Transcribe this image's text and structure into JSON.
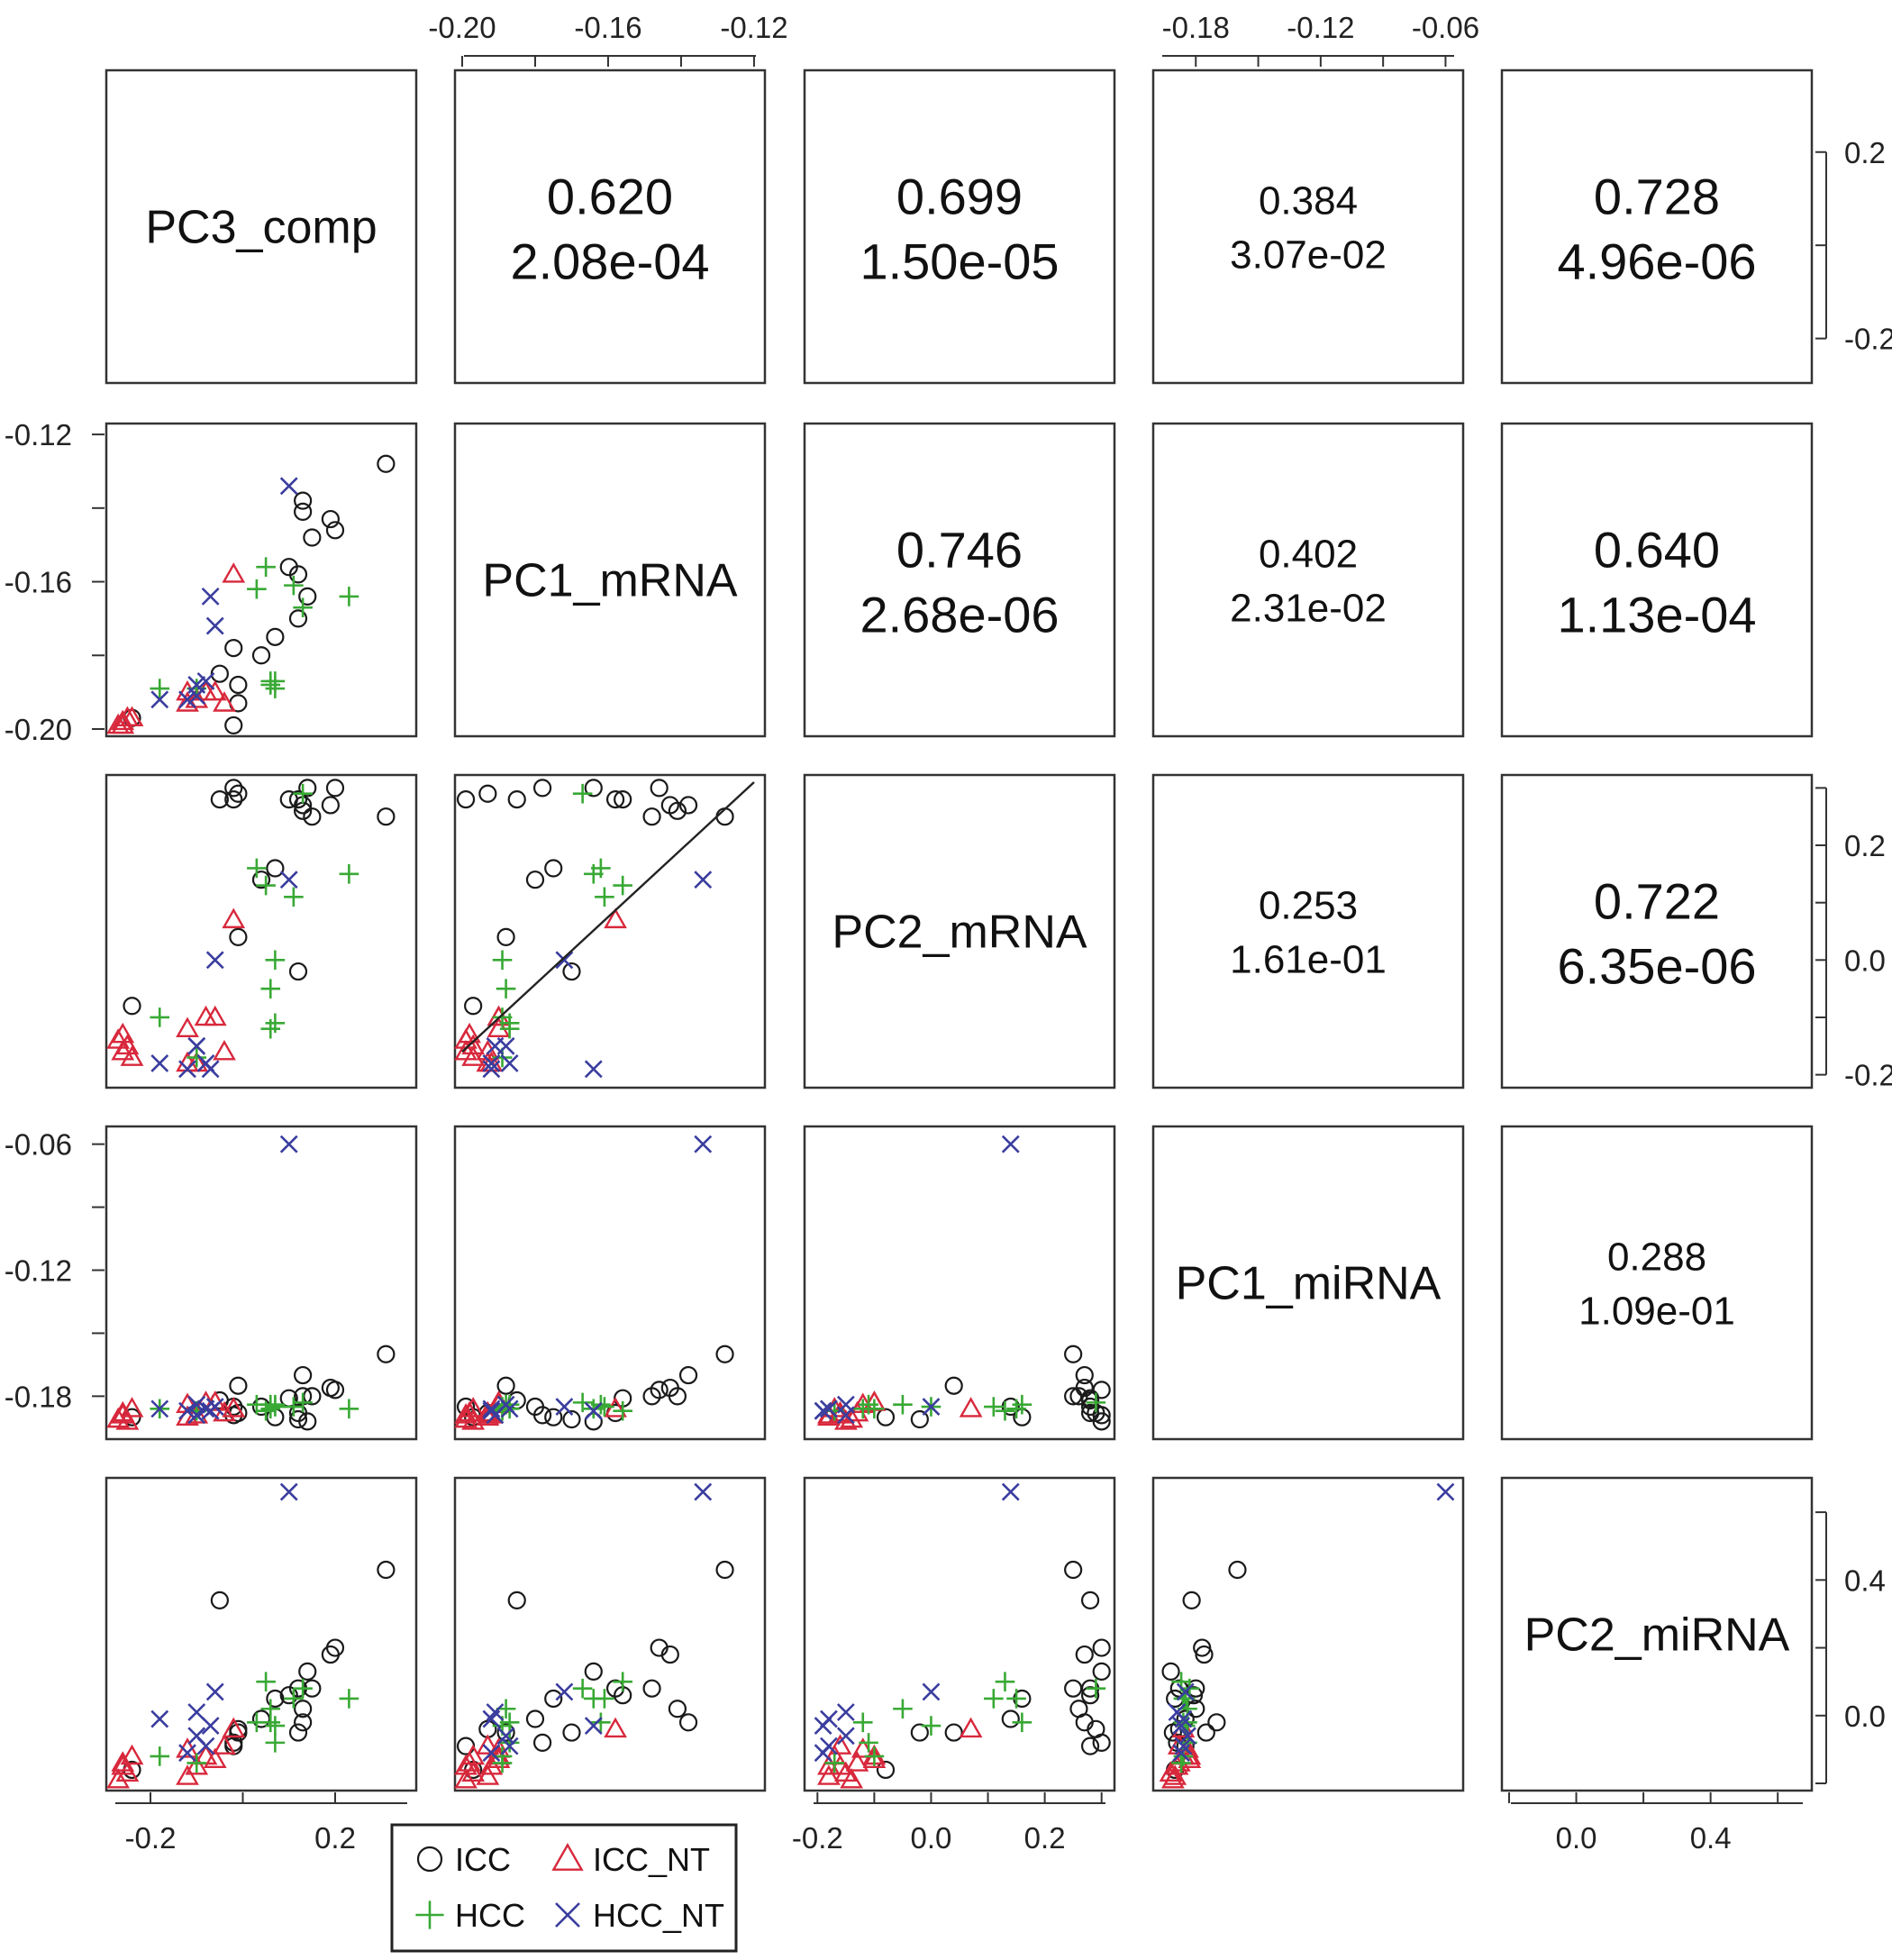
{
  "chart_data": {
    "type": "scatter-matrix",
    "variables": [
      "PC3_comp",
      "PC1_mRNA",
      "PC2_mRNA",
      "PC1_miRNA",
      "PC2_miRNA"
    ],
    "correlations": [
      {
        "row": 0,
        "col": 1,
        "r": "0.620",
        "p": "2.08e-04"
      },
      {
        "row": 0,
        "col": 2,
        "r": "0.699",
        "p": "1.50e-05"
      },
      {
        "row": 0,
        "col": 3,
        "r": "0.384",
        "p": "3.07e-02"
      },
      {
        "row": 0,
        "col": 4,
        "r": "0.728",
        "p": "4.96e-06"
      },
      {
        "row": 1,
        "col": 2,
        "r": "0.746",
        "p": "2.68e-06"
      },
      {
        "row": 1,
        "col": 3,
        "r": "0.402",
        "p": "2.31e-02"
      },
      {
        "row": 1,
        "col": 4,
        "r": "0.640",
        "p": "1.13e-04"
      },
      {
        "row": 2,
        "col": 3,
        "r": "0.253",
        "p": "1.61e-01"
      },
      {
        "row": 2,
        "col": 4,
        "r": "0.722",
        "p": "6.35e-06"
      },
      {
        "row": 3,
        "col": 4,
        "r": "0.288",
        "p": "1.09e-01"
      }
    ],
    "axes": {
      "top": [
        {
          "col": 1,
          "ticks": [
            "-0.20",
            "-0.16",
            "-0.12"
          ]
        },
        {
          "col": 3,
          "ticks": [
            "-0.18",
            "-0.12",
            "-0.06"
          ]
        }
      ],
      "bottom": [
        {
          "col": 0,
          "ticks": [
            "-0.2",
            "0.2"
          ]
        },
        {
          "col": 2,
          "ticks": [
            "-0.2",
            "0.0",
            "0.2"
          ]
        },
        {
          "col": 4,
          "ticks": [
            "0.0",
            "0.4"
          ]
        }
      ],
      "left": [
        {
          "row": 1,
          "ticks": [
            "-0.12",
            "-0.16",
            "-0.20"
          ]
        },
        {
          "row": 3,
          "ticks": [
            "-0.06",
            "-0.12",
            "-0.18"
          ]
        }
      ],
      "right": [
        {
          "row": 0,
          "ticks": [
            "0.2",
            "-0.2"
          ]
        },
        {
          "row": 2,
          "ticks": [
            "0.2",
            "0.0",
            "-0.2"
          ]
        },
        {
          "row": 4,
          "ticks": [
            "0.4",
            "0.0"
          ]
        }
      ]
    },
    "ranges": {
      "PC3_comp": [
        -0.28,
        0.36
      ],
      "PC1_mRNA": [
        -0.2,
        -0.119
      ],
      "PC2_mRNA": [
        -0.21,
        0.31
      ],
      "PC1_miRNA": [
        -0.197,
        -0.055
      ],
      "PC2_miRNA": [
        -0.2,
        0.68
      ]
    },
    "regression_line": {
      "row": 2,
      "col": 1,
      "x": [
        -0.2,
        -0.12
      ],
      "y": [
        -0.16,
        0.31
      ]
    },
    "legend": [
      {
        "label": "ICC",
        "marker": "circle",
        "color": "#1a1a1a"
      },
      {
        "label": "ICC_NT",
        "marker": "triangle",
        "color": "#d8283c"
      },
      {
        "label": "HCC",
        "marker": "plus",
        "color": "#39a935"
      },
      {
        "label": "HCC_NT",
        "marker": "x",
        "color": "#3a3d9e"
      }
    ],
    "samples": [
      {
        "group": "ICC",
        "values": [
          -0.24,
          -0.197,
          -0.08,
          -0.19,
          -0.16
        ]
      },
      {
        "group": "ICC",
        "values": [
          -0.02,
          -0.199,
          0.28,
          -0.185,
          -0.09
        ]
      },
      {
        "group": "ICC",
        "values": [
          -0.01,
          -0.193,
          0.29,
          -0.188,
          -0.04
        ]
      },
      {
        "group": "ICC",
        "values": [
          -0.01,
          -0.188,
          0.04,
          -0.175,
          -0.05
        ]
      },
      {
        "group": "ICC",
        "values": [
          0.04,
          -0.18,
          0.14,
          -0.185,
          -0.01
        ]
      },
      {
        "group": "ICC",
        "values": [
          0.07,
          -0.175,
          0.16,
          -0.19,
          0.05
        ]
      },
      {
        "group": "ICC",
        "values": [
          0.12,
          -0.17,
          -0.02,
          -0.191,
          -0.05
        ]
      },
      {
        "group": "ICC",
        "values": [
          0.14,
          -0.164,
          0.3,
          -0.192,
          0.13
        ]
      },
      {
        "group": "ICC",
        "values": [
          0.12,
          -0.158,
          0.28,
          -0.188,
          0.08
        ]
      },
      {
        "group": "ICC",
        "values": [
          0.1,
          -0.156,
          0.28,
          -0.181,
          0.06
        ]
      },
      {
        "group": "ICC",
        "values": [
          0.15,
          -0.148,
          0.25,
          -0.18,
          0.08
        ]
      },
      {
        "group": "ICC",
        "values": [
          0.2,
          -0.146,
          0.3,
          -0.177,
          0.2
        ]
      },
      {
        "group": "ICC",
        "values": [
          0.19,
          -0.143,
          0.27,
          -0.176,
          0.18
        ]
      },
      {
        "group": "ICC",
        "values": [
          -0.05,
          -0.185,
          0.28,
          -0.182,
          0.34
        ]
      },
      {
        "group": "ICC",
        "values": [
          0.31,
          -0.128,
          0.25,
          -0.16,
          0.43
        ]
      },
      {
        "group": "ICC",
        "values": [
          0.13,
          -0.138,
          0.27,
          -0.17,
          -0.02
        ]
      },
      {
        "group": "ICC",
        "values": [
          -0.02,
          -0.178,
          0.3,
          -0.189,
          -0.08
        ]
      },
      {
        "group": "ICC",
        "values": [
          0.13,
          -0.141,
          0.26,
          -0.18,
          0.02
        ]
      },
      {
        "group": "ICC_NT",
        "values": [
          -0.26,
          -0.198,
          -0.13,
          -0.188,
          -0.14
        ]
      },
      {
        "group": "ICC_NT",
        "values": [
          -0.25,
          -0.197,
          -0.15,
          -0.192,
          -0.17
        ]
      },
      {
        "group": "ICC_NT",
        "values": [
          -0.27,
          -0.199,
          -0.14,
          -0.191,
          -0.19
        ]
      },
      {
        "group": "ICC_NT",
        "values": [
          -0.24,
          -0.197,
          -0.17,
          -0.186,
          -0.12
        ]
      },
      {
        "group": "ICC_NT",
        "values": [
          -0.26,
          -0.199,
          -0.16,
          -0.189,
          -0.15
        ]
      },
      {
        "group": "ICC_NT",
        "values": [
          -0.06,
          -0.19,
          -0.1,
          -0.183,
          -0.13
        ]
      },
      {
        "group": "ICC_NT",
        "values": [
          -0.02,
          -0.158,
          0.07,
          -0.186,
          -0.04
        ]
      },
      {
        "group": "ICC_NT",
        "values": [
          -0.12,
          -0.19,
          -0.12,
          -0.184,
          -0.1
        ]
      },
      {
        "group": "ICC_NT",
        "values": [
          -0.04,
          -0.193,
          -0.16,
          -0.188,
          -0.09
        ]
      },
      {
        "group": "ICC_NT",
        "values": [
          -0.12,
          -0.193,
          -0.18,
          -0.19,
          -0.18
        ]
      },
      {
        "group": "ICC_NT",
        "values": [
          -0.08,
          -0.19,
          -0.1,
          -0.183,
          -0.12
        ]
      },
      {
        "group": "ICC_NT",
        "values": [
          -0.1,
          -0.192,
          -0.18,
          -0.189,
          -0.15
        ]
      },
      {
        "group": "HCC",
        "values": [
          -0.18,
          -0.189,
          -0.1,
          -0.186,
          -0.12
        ]
      },
      {
        "group": "HCC",
        "values": [
          -0.1,
          -0.189,
          -0.17,
          -0.187,
          -0.14
        ]
      },
      {
        "group": "HCC",
        "values": [
          0.06,
          -0.188,
          -0.05,
          -0.184,
          0.02
        ]
      },
      {
        "group": "HCC",
        "values": [
          0.03,
          -0.162,
          0.16,
          -0.184,
          -0.02
        ]
      },
      {
        "group": "HCC",
        "values": [
          0.13,
          -0.167,
          0.29,
          -0.183,
          0.08
        ]
      },
      {
        "group": "HCC",
        "values": [
          0.05,
          -0.156,
          0.13,
          -0.187,
          0.1
        ]
      },
      {
        "group": "HCC",
        "values": [
          0.07,
          -0.189,
          0.0,
          -0.185,
          -0.03
        ]
      },
      {
        "group": "HCC",
        "values": [
          0.11,
          -0.161,
          0.11,
          -0.185,
          0.05
        ]
      },
      {
        "group": "HCC",
        "values": [
          0.06,
          -0.187,
          -0.12,
          -0.186,
          -0.02
        ]
      },
      {
        "group": "HCC",
        "values": [
          0.23,
          -0.164,
          0.15,
          -0.186,
          0.05
        ]
      },
      {
        "group": "HCC",
        "values": [
          0.07,
          -0.187,
          -0.11,
          -0.184,
          -0.08
        ]
      },
      {
        "group": "HCC_NT",
        "values": [
          -0.18,
          -0.192,
          -0.18,
          -0.186,
          -0.01
        ]
      },
      {
        "group": "HCC_NT",
        "values": [
          -0.1,
          -0.191,
          -0.15,
          -0.189,
          0.01
        ]
      },
      {
        "group": "HCC_NT",
        "values": [
          -0.12,
          -0.192,
          -0.19,
          -0.187,
          -0.11
        ]
      },
      {
        "group": "HCC_NT",
        "values": [
          -0.1,
          -0.188,
          -0.15,
          -0.184,
          -0.06
        ]
      },
      {
        "group": "HCC_NT",
        "values": [
          -0.08,
          -0.187,
          -0.18,
          -0.186,
          -0.09
        ]
      },
      {
        "group": "HCC_NT",
        "values": [
          -0.07,
          -0.164,
          -0.19,
          -0.187,
          -0.03
        ]
      },
      {
        "group": "HCC_NT",
        "values": [
          -0.06,
          -0.172,
          0.0,
          -0.185,
          0.07
        ]
      },
      {
        "group": "HCC_NT",
        "values": [
          0.1,
          -0.134,
          0.14,
          -0.06,
          0.66
        ]
      }
    ]
  }
}
